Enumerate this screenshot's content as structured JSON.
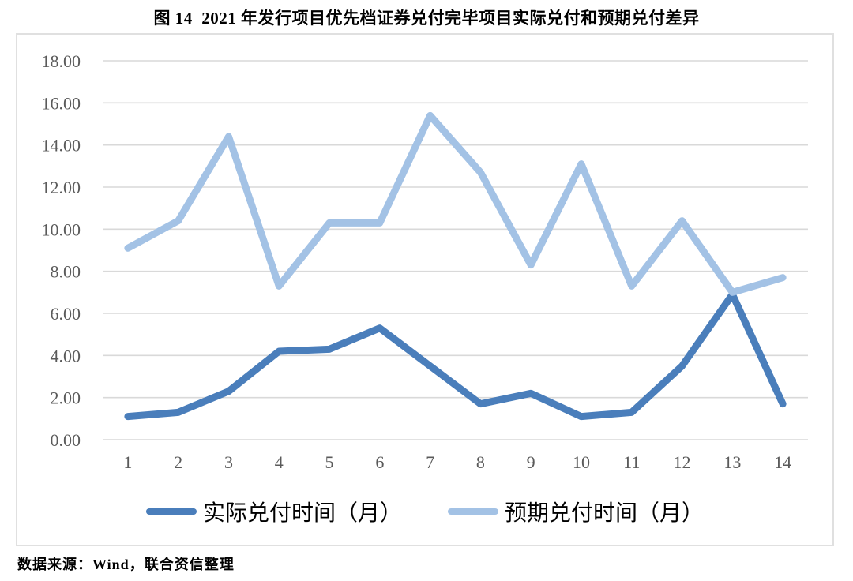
{
  "title": "图 14  2021 年发行项目优先档证券兑付完毕项目实际兑付和预期兑付差异",
  "source_note": "数据来源：Wind，联合资信整理",
  "colors": {
    "actual_line": "#4a7ebb",
    "expected_line": "#a3c2e5",
    "gridline": "#d9d9d9",
    "tick_label": "#5a5a5a",
    "chart_border": "#e0e0e0"
  },
  "chart_data": {
    "type": "line",
    "x": [
      1,
      2,
      3,
      4,
      5,
      6,
      7,
      8,
      9,
      10,
      11,
      12,
      13,
      14
    ],
    "series": [
      {
        "name": "实际兑付时间（月）",
        "color": "#4a7ebb",
        "values": [
          1.1,
          1.3,
          2.3,
          4.2,
          4.3,
          5.3,
          3.5,
          1.7,
          2.2,
          1.1,
          1.3,
          3.5,
          6.9,
          1.7
        ]
      },
      {
        "name": "预期兑付时间（月）",
        "color": "#a3c2e5",
        "values": [
          9.1,
          10.4,
          14.4,
          7.3,
          10.3,
          10.3,
          15.4,
          12.7,
          8.3,
          13.1,
          7.3,
          10.4,
          7.0,
          7.7
        ]
      }
    ],
    "ylim": [
      0,
      18
    ],
    "ytick_step": 2,
    "ytick_decimals": 2,
    "xlabel": "",
    "ylabel": "",
    "grid": true,
    "legend_position": "bottom"
  }
}
